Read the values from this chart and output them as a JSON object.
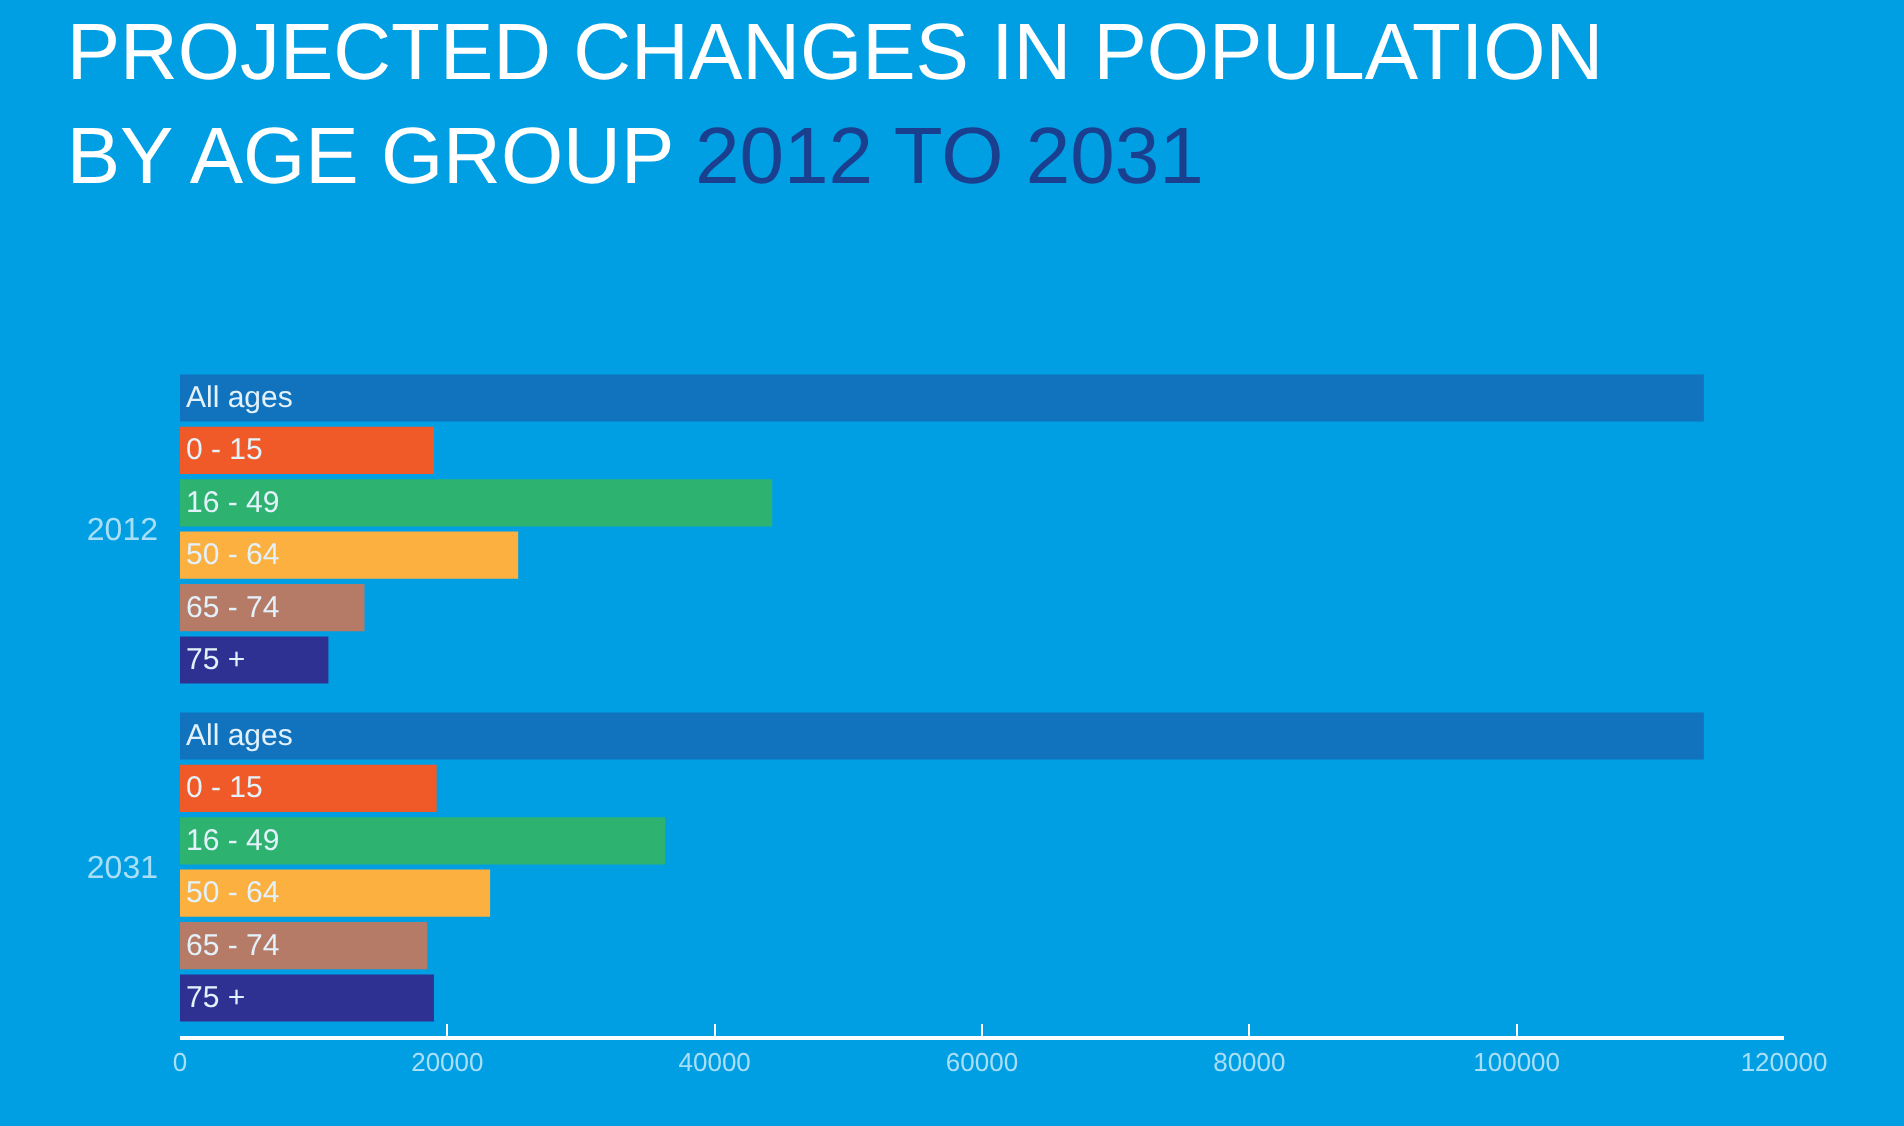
{
  "chart_data": {
    "type": "bar",
    "orientation": "horizontal",
    "title": "PROJECTED CHANGES IN POPULATION BY AGE GROUP",
    "subtitle": "2012 TO 2031",
    "categories": [
      "2012",
      "2031"
    ],
    "series": [
      {
        "name": "All ages",
        "color": "#1172bd",
        "values": [
          114000,
          114000
        ]
      },
      {
        "name": "0 - 15",
        "color": "#f05a28",
        "values": [
          19000,
          19200
        ]
      },
      {
        "name": "16 - 49",
        "color": "#2db36f",
        "values": [
          44300,
          36300
        ]
      },
      {
        "name": "50 - 64",
        "color": "#fbb040",
        "values": [
          25300,
          23200
        ]
      },
      {
        "name": "65 - 74",
        "color": "#b57b66",
        "values": [
          13800,
          18500
        ]
      },
      {
        "name": "75 +",
        "color": "#2e3192",
        "values": [
          11100,
          19000
        ]
      }
    ],
    "xlim": [
      0,
      120000
    ],
    "xticks": [
      0,
      20000,
      40000,
      60000,
      80000,
      100000,
      120000
    ],
    "grid": false
  }
}
